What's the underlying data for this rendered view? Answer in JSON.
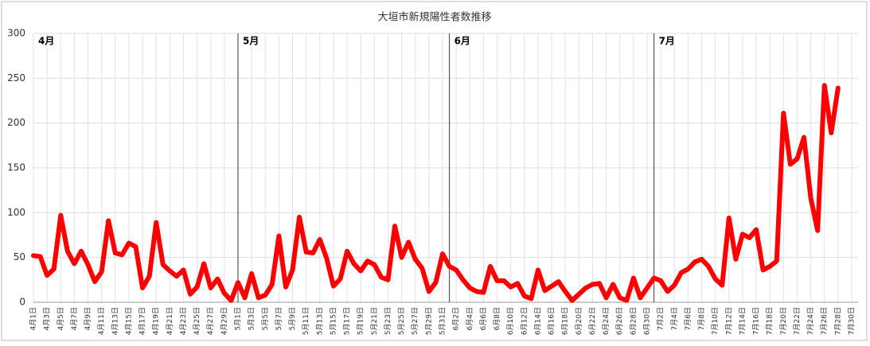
{
  "chart_data": {
    "type": "line",
    "title": "大垣市新規陽性者数推移",
    "categories": [
      "4月1日",
      null,
      "4月3日",
      null,
      "4月5日",
      null,
      "4月7日",
      null,
      "4月9日",
      null,
      "4月11日",
      null,
      "4月13日",
      null,
      "4月15日",
      null,
      "4月17日",
      null,
      "4月19日",
      null,
      "4月21日",
      null,
      "4月23日",
      null,
      "4月25日",
      null,
      "4月27日",
      null,
      "4月29日",
      null,
      "5月1日",
      null,
      "5月3日",
      null,
      "5月5日",
      null,
      "5月7日",
      null,
      "5月9日",
      null,
      "5月11日",
      null,
      "5月13日",
      null,
      "5月15日",
      null,
      "5月17日",
      null,
      "5月19日",
      null,
      "5月21日",
      null,
      "5月23日",
      null,
      "5月25日",
      null,
      "5月27日",
      null,
      "5月29日",
      null,
      "5月31日",
      null,
      "6月2日",
      null,
      "6月4日",
      null,
      "6月6日",
      null,
      "6月8日",
      null,
      "6月10日",
      null,
      "6月12日",
      null,
      "6月14日",
      null,
      "6月16日",
      null,
      "6月18日",
      null,
      "6月20日",
      null,
      "6月22日",
      null,
      "6月24日",
      null,
      "6月26日",
      null,
      "6月28日",
      null,
      "6月30日",
      null,
      "7月2日",
      null,
      "7月4日",
      null,
      "7月6日",
      null,
      "7月8日",
      null,
      "7月10日",
      null,
      "7月12日",
      null,
      "7月14日",
      null,
      "7月16日",
      null,
      "7月18日",
      null,
      "7月20日",
      null,
      "7月22日",
      null,
      "7月24日",
      null,
      "7月26日",
      null,
      "7月28日",
      null,
      "7月30日"
    ],
    "series": [
      {
        "name": "大垣市新規陽性者数",
        "color": "#ff0000",
        "values": [
          52,
          51,
          30,
          37,
          97,
          57,
          43,
          57,
          42,
          23,
          34,
          91,
          55,
          53,
          66,
          62,
          16,
          29,
          89,
          42,
          35,
          29,
          36,
          9,
          17,
          43,
          16,
          26,
          10,
          2,
          22,
          5,
          32,
          5,
          8,
          20,
          74,
          17,
          36,
          95,
          56,
          55,
          70,
          49,
          18,
          26,
          57,
          43,
          35,
          46,
          42,
          28,
          25,
          85,
          50,
          67,
          48,
          38,
          12,
          22,
          54,
          40,
          36,
          25,
          16,
          12,
          11,
          40,
          24,
          24,
          17,
          21,
          7,
          4,
          36,
          13,
          18,
          23,
          12,
          2,
          9,
          16,
          20,
          21,
          5,
          20,
          5,
          2,
          27,
          5,
          16,
          27,
          24,
          12,
          19,
          33,
          37,
          45,
          48,
          40,
          26,
          19,
          94,
          48,
          76,
          72,
          81,
          36,
          40,
          46,
          211,
          154,
          160,
          184,
          116,
          80,
          242,
          189,
          239,
          null,
          null
        ]
      }
    ],
    "annotations": [
      "4月",
      "5月",
      "6月",
      "7月"
    ],
    "ylim": [
      0,
      300
    ],
    "yticks": [
      0,
      50,
      100,
      150,
      200,
      250,
      300
    ],
    "grid": true
  }
}
